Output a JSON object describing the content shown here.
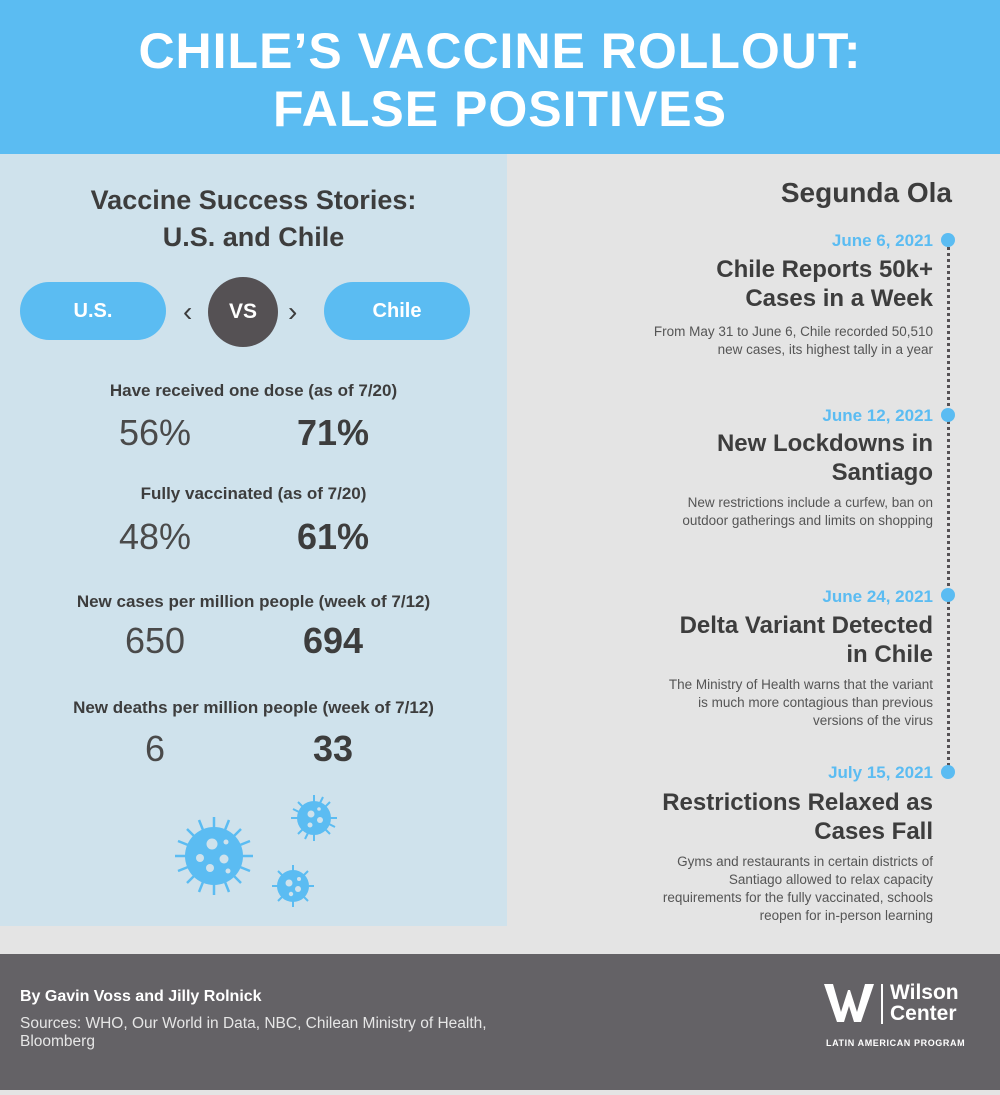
{
  "header": {
    "title_line1": "CHILE’S VACCINE ROLLOUT:",
    "title_line2": "FALSE POSITIVES"
  },
  "comparison": {
    "title_line1": "Vaccine Success Stories:",
    "title_line2": "U.S. and Chile",
    "left_label": "U.S.",
    "vs_label": "VS",
    "right_label": "Chile",
    "prev_glyph": "‹",
    "next_glyph": "›",
    "stats": [
      {
        "label": "Have received one dose (as of 7/20)",
        "us": "56%",
        "chile": "71%"
      },
      {
        "label": "Fully vaccinated (as of 7/20)",
        "us": "48%",
        "chile": "61%"
      },
      {
        "label": "New cases per million people (week of 7/12)",
        "us": "650",
        "chile": "694"
      },
      {
        "label": "New deaths per million people (week of 7/12)",
        "us": "6",
        "chile": "33"
      }
    ]
  },
  "timeline": {
    "title": "Segunda Ola",
    "events": [
      {
        "date": "June 6, 2021",
        "title_line1": "Chile Reports 50k+",
        "title_line2": "Cases in a Week",
        "desc_line1": "From May 31 to June 6, Chile recorded 50,510",
        "desc_line2": "new cases, its highest tally in a year",
        "desc_line3": "",
        "desc_line4": ""
      },
      {
        "date": "June 12, 2021",
        "title_line1": "New Lockdowns in",
        "title_line2": "Santiago",
        "desc_line1": "New restrictions include a curfew, ban on",
        "desc_line2": "outdoor gatherings and limits on shopping",
        "desc_line3": "",
        "desc_line4": ""
      },
      {
        "date": "June 24, 2021",
        "title_line1": "Delta Variant Detected",
        "title_line2": "in Chile",
        "desc_line1": "The Ministry of Health warns that the variant",
        "desc_line2": "is much more contagious than previous",
        "desc_line3": "versions of the virus",
        "desc_line4": ""
      },
      {
        "date": "July 15, 2021",
        "title_line1": "Restrictions Relaxed as",
        "title_line2": "Cases Fall",
        "desc_line1": "Gyms and restaurants in certain districts of",
        "desc_line2": "Santiago allowed to relax capacity",
        "desc_line3": "requirements for the fully vaccinated, schools",
        "desc_line4": "reopen for in-person learning"
      }
    ]
  },
  "footer": {
    "byline": "By Gavin Voss and Jilly Rolnick",
    "sources_line1": "Sources: WHO, Our World in Data, NBC, Chilean Ministry of Health,",
    "sources_line2": "Bloomberg",
    "logo_line1": "Wilson",
    "logo_line2": "Center",
    "program": "LATIN AMERICAN PROGRAM"
  },
  "icons": [
    "virus-icon",
    "chevron-left-icon",
    "chevron-right-icon",
    "wilson-center-logo-icon"
  ],
  "colors": {
    "accent_blue": "#5bbcf2",
    "dark_gray": "#555154",
    "panel_blue": "#cfe2ec",
    "panel_gray": "#e4e4e4",
    "footer_gray": "#646266"
  }
}
